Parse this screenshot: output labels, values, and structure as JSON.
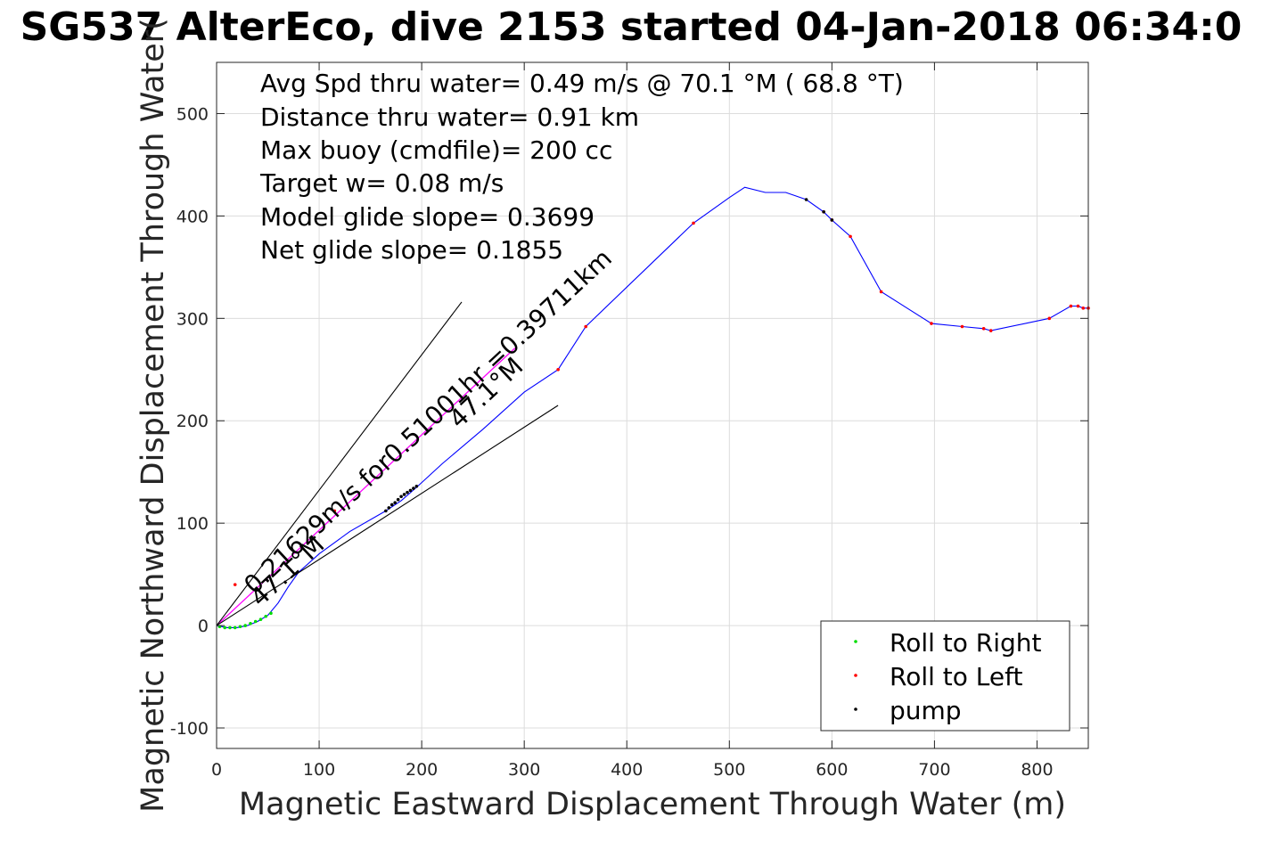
{
  "chart_data": {
    "type": "line",
    "title": "SG537 AlterEco, dive 2153 started 04-Jan-2018 06:34:0",
    "xlabel": "Magnetic Eastward Displacement Through Water (m)",
    "ylabel": "Magnetic Northward Displacement Through Water(",
    "xlim": [
      0,
      850
    ],
    "ylim": [
      -120,
      550
    ],
    "xticks": [
      0,
      100,
      200,
      300,
      400,
      500,
      600,
      700,
      800
    ],
    "yticks": [
      -100,
      0,
      100,
      200,
      300,
      400,
      500
    ],
    "grid": true,
    "legend_position": "bottom-right",
    "annotations": [
      "Avg Spd thru water=  0.49 m/s @  70.1 °M ( 68.8 °T)",
      "Distance thru water=  0.91 km",
      "Max buoy (cmdfile)= 200 cc",
      "Target w= 0.08 m/s",
      "Model glide slope= 0.3699",
      "Net glide slope= 0.1855"
    ],
    "line_labels": [
      "0.21629m/s for0.51001hr =0.39711km",
      "47.1°M",
      "47.1°M"
    ],
    "legend": [
      {
        "label": "Roll to Right",
        "color": "#00dd00"
      },
      {
        "label": "Roll to Left",
        "color": "#ff0000"
      },
      {
        "label": "pump",
        "color": "#000000"
      }
    ],
    "colors": {
      "track": "#0000ff",
      "current": "#ff00ff",
      "reference": "#000000"
    },
    "series": [
      {
        "kind": "track",
        "x": [
          0,
          10,
          20,
          30,
          40,
          50,
          60,
          70,
          80,
          100,
          130,
          165,
          180,
          195,
          220,
          260,
          300,
          333,
          360,
          465,
          500,
          515,
          535,
          555,
          575,
          592,
          600,
          618,
          648,
          697,
          727,
          748,
          755,
          812,
          833,
          840,
          845,
          850
        ],
        "y": [
          0,
          -2,
          -2,
          0,
          4,
          10,
          22,
          38,
          52,
          70,
          92,
          112,
          122,
          135,
          158,
          192,
          228,
          250,
          292,
          393,
          418,
          428,
          423,
          423,
          416,
          404,
          396,
          380,
          326,
          295,
          292,
          290,
          288,
          300,
          312,
          312,
          310,
          310
        ]
      },
      {
        "kind": "current",
        "x": [
          0,
          291
        ],
        "y": [
          0,
          271
        ]
      },
      {
        "kind": "reference",
        "x": [
          0,
          239
        ],
        "y": [
          0,
          316
        ]
      },
      {
        "kind": "reference",
        "x": [
          0,
          333
        ],
        "y": [
          0,
          215
        ]
      }
    ],
    "markers": {
      "roll_right": {
        "x": [
          3,
          8,
          13,
          18,
          23,
          28,
          33,
          38,
          43,
          48,
          53
        ],
        "y": [
          -1,
          -2,
          -2,
          -2,
          -1,
          0,
          2,
          4,
          6,
          9,
          12
        ]
      },
      "roll_left": {
        "x": [
          333,
          360,
          465,
          592,
          600,
          618,
          648,
          697,
          727,
          748,
          755,
          812,
          833,
          840,
          845,
          850,
          18,
          115
        ],
        "y": [
          250,
          292,
          393,
          404,
          396,
          380,
          326,
          295,
          292,
          290,
          288,
          300,
          312,
          312,
          310,
          310,
          40,
          112
        ]
      },
      "pump": {
        "x": [
          165,
          168,
          171,
          174,
          177,
          180,
          183,
          186,
          189,
          192,
          195,
          575,
          592,
          600
        ],
        "y": [
          112,
          115,
          118,
          120,
          123,
          126,
          128,
          130,
          132,
          134,
          136,
          416,
          404,
          396
        ]
      }
    }
  }
}
